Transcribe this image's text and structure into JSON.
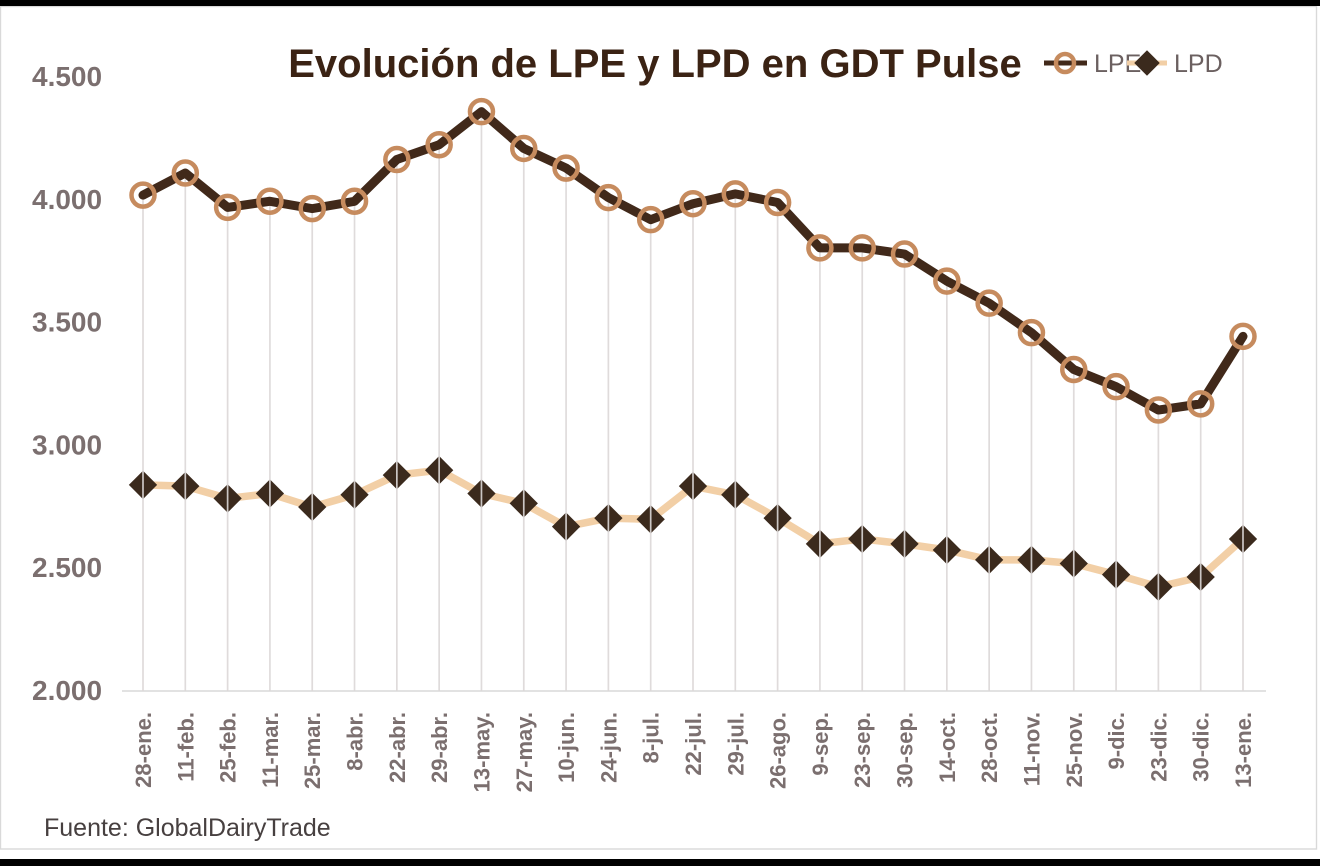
{
  "chart_data": {
    "type": "line",
    "title": "Evolución de LPE y LPD en GDT Pulse",
    "source_note": "Fuente: GlobalDairyTrade",
    "legend_position": "top-right",
    "grid": "vertical-droplines",
    "categories": [
      "28-ene.",
      "11-feb.",
      "25-feb.",
      "11-mar.",
      "25-mar.",
      "8-abr.",
      "22-abr.",
      "29-abr.",
      "13-may.",
      "27-may.",
      "10-jun.",
      "24-jun.",
      "8-jul.",
      "22-jul.",
      "29-jul.",
      "26-ago.",
      "9-sep.",
      "23-sep.",
      "30-sep.",
      "14-oct.",
      "28-oct.",
      "11-nov.",
      "25-nov.",
      "9-dic.",
      "23-dic.",
      "30-dic.",
      "13-ene."
    ],
    "series": [
      {
        "name": "LPE",
        "marker": "circle",
        "line_color": "#41291A",
        "marker_color": "#C68B5E",
        "values": [
          4015,
          4105,
          3965,
          3990,
          3960,
          3990,
          4160,
          4220,
          4355,
          4205,
          4125,
          4005,
          3915,
          3980,
          4020,
          3985,
          3800,
          3800,
          3775,
          3665,
          3575,
          3455,
          3305,
          3235,
          3140,
          3165,
          3440
        ]
      },
      {
        "name": "LPD",
        "marker": "diamond",
        "line_color": "#F2CFA6",
        "marker_color": "#3B2A1D",
        "values": [
          2835,
          2830,
          2780,
          2800,
          2745,
          2795,
          2875,
          2895,
          2800,
          2760,
          2665,
          2700,
          2695,
          2830,
          2795,
          2700,
          2595,
          2615,
          2595,
          2570,
          2530,
          2530,
          2515,
          2470,
          2420,
          2460,
          2615
        ]
      }
    ],
    "y_axis": {
      "min": 2000,
      "max": 4500,
      "tick_values": [
        4500,
        4000,
        3500,
        3000,
        2500,
        2000
      ],
      "tick_labels": [
        "4.500",
        "4.000",
        "3.500",
        "3.000",
        "2.500",
        "2.000"
      ]
    },
    "style": {
      "title_color": "#3B2314",
      "tick_label_color": "#7B6F6F",
      "legend_text_color": "#6B6060",
      "source_color": "#474040",
      "gridline_color": "#DBD7D7",
      "axis_line_color": "#D9D9D9",
      "frame_border_color": "#D9D9D9",
      "edge_bar_color": "#000000",
      "background": "#FFFFFF"
    }
  }
}
